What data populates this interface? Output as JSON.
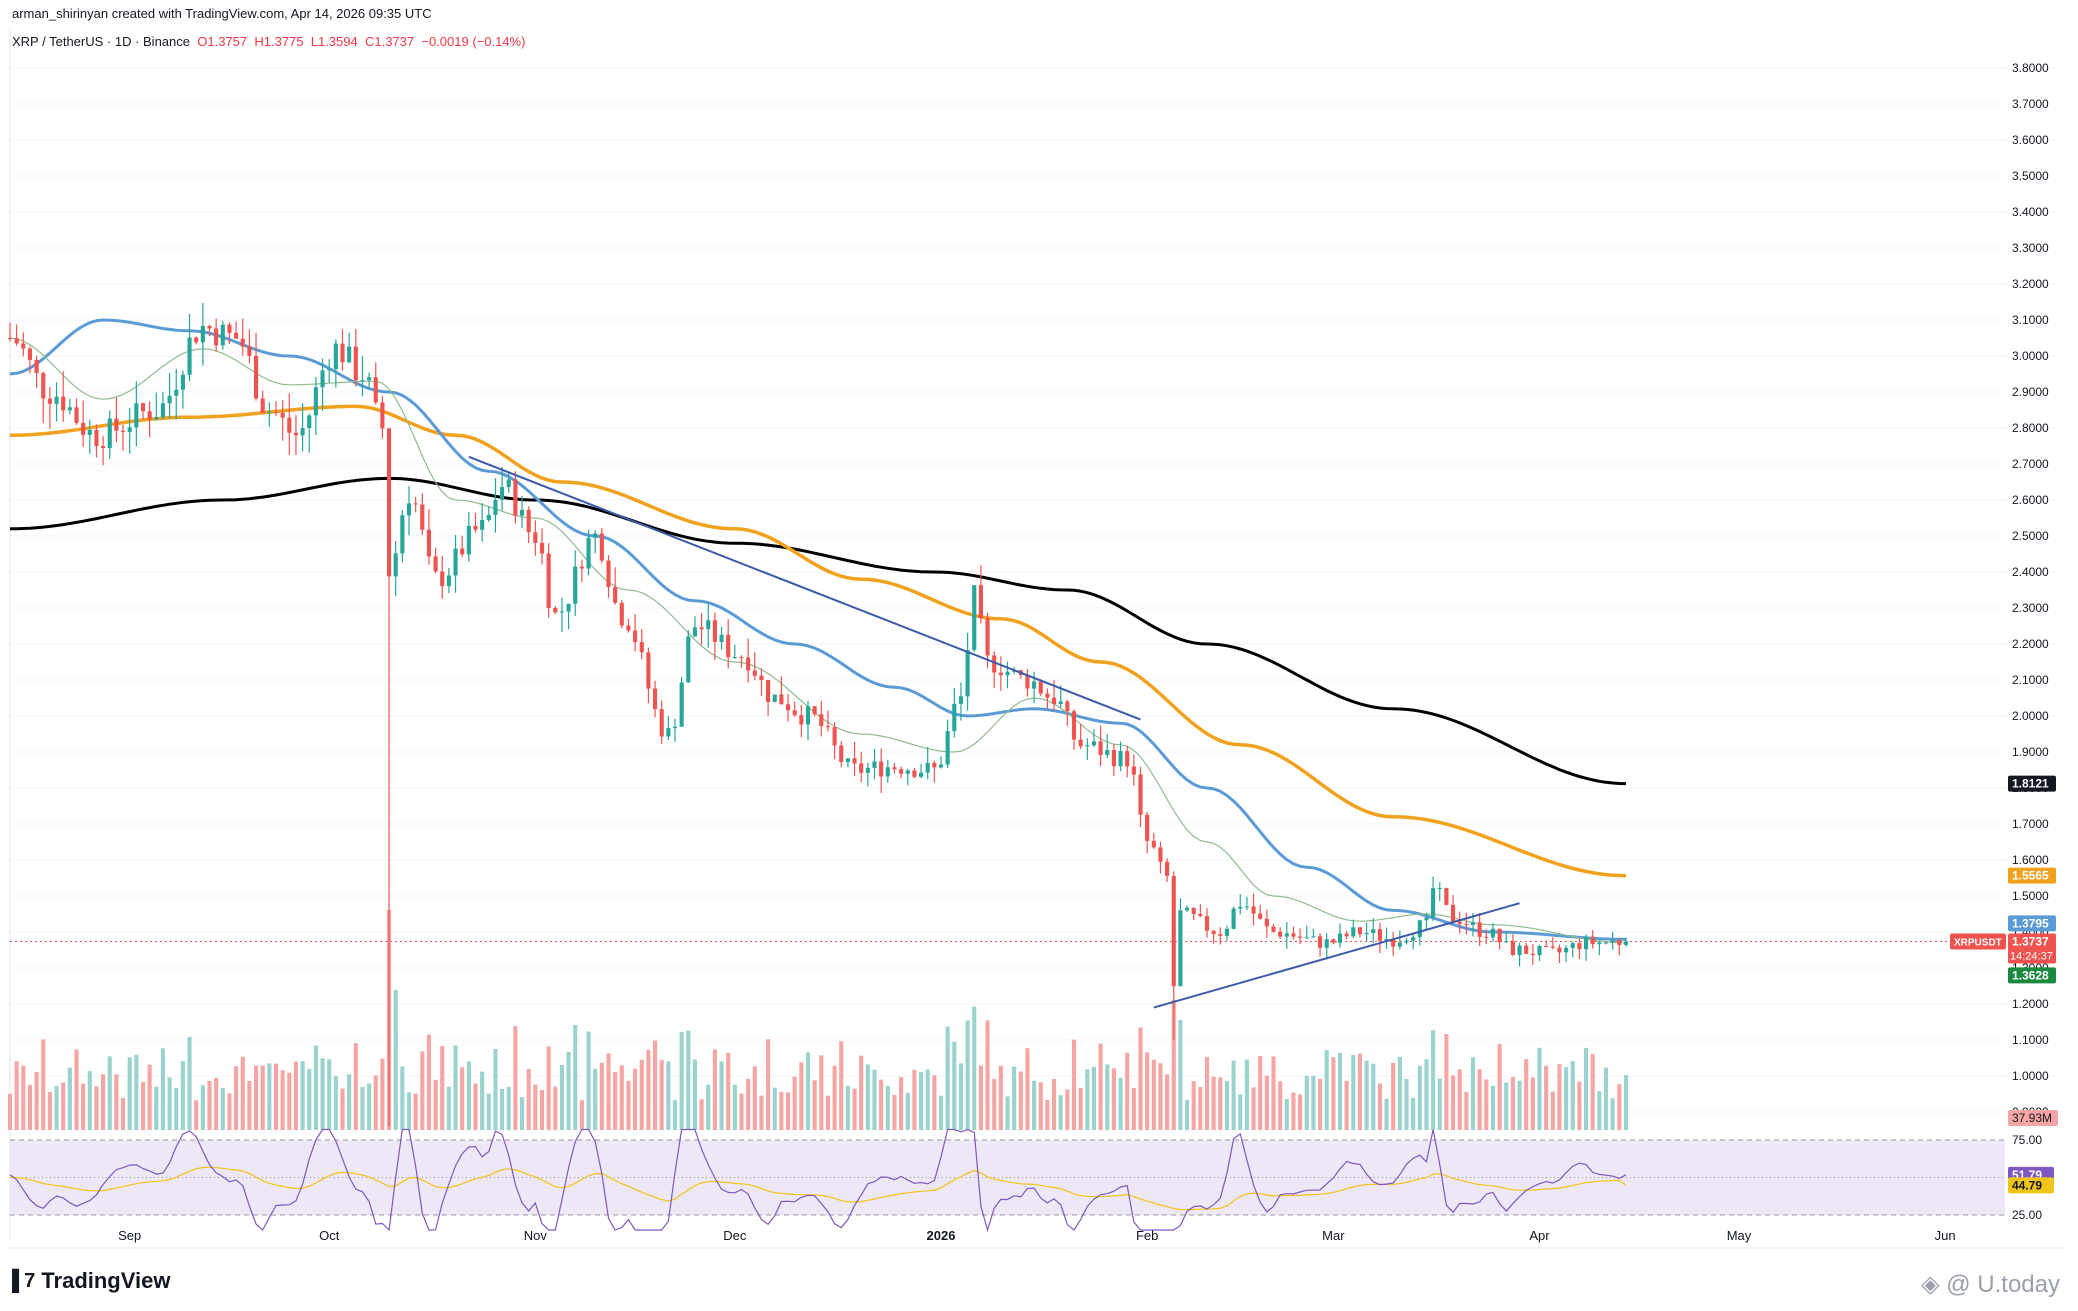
{
  "header": {
    "credit": "arman_shirinyan created with TradingView.com, Apr 14, 2026 09:35 UTC",
    "symbol_line": "XRP / TetherUS · 1D · Binance",
    "open": "O1.3757",
    "high": "H1.3775",
    "low": "L1.3594",
    "close": "C1.3737",
    "change": "−0.0019 (−0.14%)"
  },
  "branding": {
    "logo_icon": "tradingview-logo-icon",
    "name": "TradingView",
    "watermark": "U.today"
  },
  "colors": {
    "up": "#26a69a",
    "down": "#ef5350",
    "vol_up": "#9ad3cd",
    "vol_down": "#f5a6a4",
    "ma_fast": "#8fbc8f",
    "ma_blue": "#5b9bd5",
    "ma_orange": "#f0a11e",
    "ma_black": "#000000",
    "trendline": "#3b5ba9",
    "rsi_line": "#7e57c2",
    "rsi_ma": "#f0c419",
    "rsi_band": "#ede7f6"
  },
  "chart_data": {
    "type": "candlestick",
    "symbol": "XRP / TetherUS",
    "interval": "1D",
    "exchange": "Binance",
    "x_axis": {
      "start": "2025-08-14",
      "end": "2026-06-10",
      "ticks": [
        {
          "date": "2025-09-01",
          "label": "Sep"
        },
        {
          "date": "2025-10-01",
          "label": "Oct"
        },
        {
          "date": "2025-11-01",
          "label": "Nov"
        },
        {
          "date": "2025-12-01",
          "label": "Dec"
        },
        {
          "date": "2026-01-01",
          "label": "2026"
        },
        {
          "date": "2026-02-01",
          "label": "Feb"
        },
        {
          "date": "2026-03-01",
          "label": "Mar"
        },
        {
          "date": "2026-04-01",
          "label": "Apr"
        },
        {
          "date": "2026-05-01",
          "label": "May"
        },
        {
          "date": "2026-06-01",
          "label": "Jun"
        }
      ]
    },
    "y_axis": {
      "min": 0.85,
      "max": 3.85,
      "ticks": [
        "3.8000",
        "3.7000",
        "3.6000",
        "3.5000",
        "3.4000",
        "3.3000",
        "3.2000",
        "3.1000",
        "3.0000",
        "2.9000",
        "2.8000",
        "2.7000",
        "2.6000",
        "2.5000",
        "2.4000",
        "2.3000",
        "2.2000",
        "2.1000",
        "2.0000",
        "1.9000",
        "1.8000",
        "1.7000",
        "1.6000",
        "1.5000",
        "1.4000",
        "1.3000",
        "1.2000",
        "1.1000",
        "1.0000",
        "0.9000"
      ]
    },
    "price_key_points": [
      {
        "date": "2025-08-14",
        "price": 3.05
      },
      {
        "date": "2025-08-20",
        "price": 2.9
      },
      {
        "date": "2025-08-27",
        "price": 2.78
      },
      {
        "date": "2025-09-05",
        "price": 2.85
      },
      {
        "date": "2025-09-12",
        "price": 3.08
      },
      {
        "date": "2025-09-17",
        "price": 3.05
      },
      {
        "date": "2025-09-22",
        "price": 2.85
      },
      {
        "date": "2025-09-26",
        "price": 2.78
      },
      {
        "date": "2025-10-02",
        "price": 3.02
      },
      {
        "date": "2025-10-06",
        "price": 2.95
      },
      {
        "date": "2025-10-09",
        "price": 2.8
      },
      {
        "date": "2025-10-10",
        "price": 2.4
      },
      {
        "date": "2025-10-13",
        "price": 2.62
      },
      {
        "date": "2025-10-17",
        "price": 2.38
      },
      {
        "date": "2025-10-24",
        "price": 2.52
      },
      {
        "date": "2025-10-27",
        "price": 2.64
      },
      {
        "date": "2025-11-01",
        "price": 2.5
      },
      {
        "date": "2025-11-04",
        "price": 2.28
      },
      {
        "date": "2025-11-10",
        "price": 2.5
      },
      {
        "date": "2025-11-14",
        "price": 2.28
      },
      {
        "date": "2025-11-21",
        "price": 1.95
      },
      {
        "date": "2025-11-25",
        "price": 2.25
      },
      {
        "date": "2025-12-02",
        "price": 2.17
      },
      {
        "date": "2025-12-07",
        "price": 2.05
      },
      {
        "date": "2025-12-12",
        "price": 2.0
      },
      {
        "date": "2025-12-19",
        "price": 1.85
      },
      {
        "date": "2025-12-25",
        "price": 1.86
      },
      {
        "date": "2025-12-31",
        "price": 1.85
      },
      {
        "date": "2026-01-04",
        "price": 2.05
      },
      {
        "date": "2026-01-06",
        "price": 2.33
      },
      {
        "date": "2026-01-08",
        "price": 2.15
      },
      {
        "date": "2026-01-14",
        "price": 2.1
      },
      {
        "date": "2026-01-18",
        "price": 2.05
      },
      {
        "date": "2026-01-22",
        "price": 1.92
      },
      {
        "date": "2026-01-29",
        "price": 1.88
      },
      {
        "date": "2026-02-01",
        "price": 1.65
      },
      {
        "date": "2026-02-04",
        "price": 1.55
      },
      {
        "date": "2026-02-05",
        "price": 1.25
      },
      {
        "date": "2026-02-06",
        "price": 1.45
      },
      {
        "date": "2026-02-12",
        "price": 1.4
      },
      {
        "date": "2026-02-15",
        "price": 1.48
      },
      {
        "date": "2026-02-20",
        "price": 1.4
      },
      {
        "date": "2026-02-28",
        "price": 1.37
      },
      {
        "date": "2026-03-05",
        "price": 1.4
      },
      {
        "date": "2026-03-10",
        "price": 1.38
      },
      {
        "date": "2026-03-15",
        "price": 1.42
      },
      {
        "date": "2026-03-16",
        "price": 1.52
      },
      {
        "date": "2026-03-19",
        "price": 1.44
      },
      {
        "date": "2026-03-24",
        "price": 1.4
      },
      {
        "date": "2026-03-28",
        "price": 1.35
      },
      {
        "date": "2026-04-03",
        "price": 1.34
      },
      {
        "date": "2026-04-08",
        "price": 1.37
      },
      {
        "date": "2026-04-14",
        "price": 1.3737
      }
    ],
    "indicators": {
      "ma_black": {
        "color": "#000000",
        "last": "1.8121",
        "points": [
          [
            "2025-08-14",
            2.52
          ],
          [
            "2025-09-15",
            2.6
          ],
          [
            "2025-10-10",
            2.66
          ],
          [
            "2025-11-01",
            2.6
          ],
          [
            "2025-12-01",
            2.48
          ],
          [
            "2025-12-31",
            2.4
          ],
          [
            "2026-01-20",
            2.35
          ],
          [
            "2026-02-10",
            2.2
          ],
          [
            "2026-03-10",
            2.02
          ],
          [
            "2026-04-14",
            1.8121
          ]
        ]
      },
      "ma_orange": {
        "color": "#f0a11e",
        "last": "1.5565",
        "points": [
          [
            "2025-08-14",
            2.78
          ],
          [
            "2025-09-10",
            2.83
          ],
          [
            "2025-10-05",
            2.86
          ],
          [
            "2025-10-20",
            2.78
          ],
          [
            "2025-11-05",
            2.65
          ],
          [
            "2025-12-01",
            2.52
          ],
          [
            "2025-12-20",
            2.38
          ],
          [
            "2026-01-10",
            2.27
          ],
          [
            "2026-01-25",
            2.15
          ],
          [
            "2026-02-15",
            1.92
          ],
          [
            "2026-03-10",
            1.72
          ],
          [
            "2026-04-14",
            1.5565
          ]
        ]
      },
      "ma_blue": {
        "color": "#5b9bd5",
        "last": "1.3795",
        "points": [
          [
            "2025-08-14",
            2.95
          ],
          [
            "2025-08-28",
            3.1
          ],
          [
            "2025-09-10",
            3.07
          ],
          [
            "2025-09-25",
            3.0
          ],
          [
            "2025-10-10",
            2.9
          ],
          [
            "2025-10-25",
            2.68
          ],
          [
            "2025-11-10",
            2.5
          ],
          [
            "2025-11-25",
            2.32
          ],
          [
            "2025-12-10",
            2.2
          ],
          [
            "2025-12-25",
            2.08
          ],
          [
            "2026-01-05",
            2.0
          ],
          [
            "2026-01-15",
            2.02
          ],
          [
            "2026-01-28",
            1.98
          ],
          [
            "2026-02-10",
            1.8
          ],
          [
            "2026-02-25",
            1.58
          ],
          [
            "2026-03-10",
            1.46
          ],
          [
            "2026-03-25",
            1.4
          ],
          [
            "2026-04-14",
            1.3795
          ]
        ]
      },
      "ma_fast": {
        "color": "#8fbc8f",
        "points": [
          [
            "2025-08-14",
            3.05
          ],
          [
            "2025-08-28",
            2.88
          ],
          [
            "2025-09-12",
            3.02
          ],
          [
            "2025-09-25",
            2.92
          ],
          [
            "2025-10-08",
            2.93
          ],
          [
            "2025-10-20",
            2.6
          ],
          [
            "2025-11-01",
            2.55
          ],
          [
            "2025-11-15",
            2.35
          ],
          [
            "2025-12-01",
            2.15
          ],
          [
            "2025-12-20",
            1.95
          ],
          [
            "2026-01-03",
            1.9
          ],
          [
            "2026-01-15",
            2.05
          ],
          [
            "2026-01-28",
            1.92
          ],
          [
            "2026-02-10",
            1.65
          ],
          [
            "2026-02-20",
            1.5
          ],
          [
            "2026-03-05",
            1.43
          ],
          [
            "2026-03-15",
            1.45
          ],
          [
            "2026-03-25",
            1.42
          ],
          [
            "2026-04-14",
            1.37
          ]
        ]
      }
    },
    "trendlines": [
      {
        "name": "descending-resistance",
        "from": [
          "2025-10-22",
          2.72
        ],
        "to": [
          "2026-01-31",
          1.99
        ]
      },
      {
        "name": "ascending-support",
        "from": [
          "2026-02-02",
          1.19
        ],
        "to": [
          "2026-03-29",
          1.48
        ]
      }
    ],
    "price_labels": [
      {
        "name": "ma-black-label",
        "value": "1.8121",
        "color": "#131722"
      },
      {
        "name": "ma-orange-label",
        "value": "1.5565",
        "color": "#f0a11e"
      },
      {
        "name": "ma-blue-label",
        "value": "1.3795",
        "color": "#5b9bd5"
      },
      {
        "name": "last-price-label",
        "value": "1.3737",
        "color": "#ef5350",
        "extra": "14:24:37",
        "symbol_tag": "XRPUSDT"
      },
      {
        "name": "low-label",
        "value": "1.3628",
        "color": "#1b8a3e"
      }
    ],
    "volume": {
      "last": "37.93M"
    },
    "rsi": {
      "levels": [
        "75.00",
        "25.00"
      ],
      "value": "51.79",
      "ma_value": "44.79",
      "value_color": "#7e57c2",
      "ma_color": "#f0c419"
    }
  }
}
